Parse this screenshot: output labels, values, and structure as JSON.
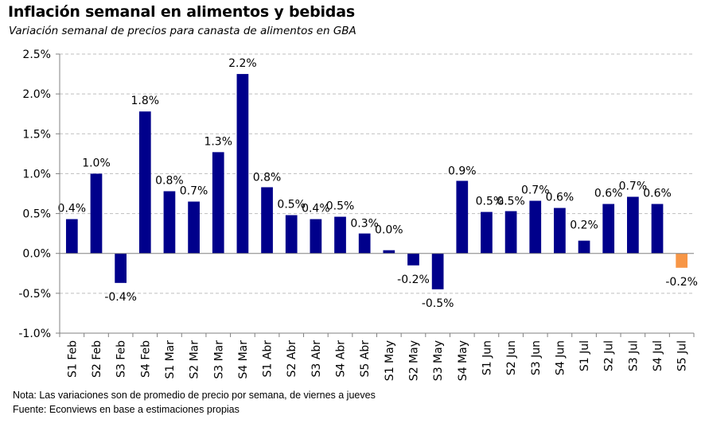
{
  "title": "Inflación semanal en alimentos y bebidas",
  "subtitle": "Variación semanal de precios para canasta de alimentos en GBA",
  "notes": {
    "nota": "Nota: Las variaciones son de promedio de precio por semana, de viernes a jueves",
    "fuente": "Fuente: Econviews en base a estimaciones propias"
  },
  "colors": {
    "bar": "#00008B",
    "highlight": "#F79646",
    "grid": "#BFBFBF",
    "axis": "#808080"
  },
  "chart_data": {
    "type": "bar",
    "title": "Inflación semanal en alimentos y bebidas",
    "xlabel": "",
    "ylabel": "",
    "ylim": [
      -1.0,
      2.5
    ],
    "yticks": [
      2.5,
      2.0,
      1.5,
      1.0,
      0.5,
      0.0,
      -0.5,
      -1.0
    ],
    "ytick_labels": [
      "2.5%",
      "2.0%",
      "1.5%",
      "1.0%",
      "0.5%",
      "0.0%",
      "-0.5%",
      "-1.0%"
    ],
    "grid": true,
    "categories": [
      "S1 Feb",
      "S2 Feb",
      "S3 Feb",
      "S4 Feb",
      "S1 Mar",
      "S2 Mar",
      "S3 Mar",
      "S4 Mar",
      "S1 Abr",
      "S2 Abr",
      "S3 Abr",
      "S4 Abr",
      "S5 Abr",
      "S1 May",
      "S2 May",
      "S3 May",
      "S4 May",
      "S1 Jun",
      "S2 Jun",
      "S3 Jun",
      "S4 Jun",
      "S1 Jul",
      "S2 Jul",
      "S3 Jul",
      "S4 Jul",
      "S5 Jul"
    ],
    "values": [
      0.43,
      1.0,
      -0.37,
      1.78,
      0.78,
      0.65,
      1.27,
      2.25,
      0.83,
      0.48,
      0.43,
      0.46,
      0.25,
      0.04,
      -0.15,
      -0.45,
      0.91,
      0.52,
      0.53,
      0.66,
      0.57,
      0.16,
      0.62,
      0.71,
      0.62,
      -0.18
    ],
    "data_labels": [
      "0.4%",
      "1.0%",
      "-0.4%",
      "1.8%",
      "0.8%",
      "0.7%",
      "1.3%",
      "2.2%",
      "0.8%",
      "0.5%",
      "0.4%",
      "0.5%",
      "0.3%",
      "0.0%",
      "-0.2%",
      "-0.5%",
      "0.9%",
      "0.5%",
      "0.5%",
      "0.7%",
      "0.6%",
      "0.2%",
      "0.6%",
      "0.7%",
      "0.6%",
      "-0.2%"
    ],
    "highlight_index": 25
  }
}
